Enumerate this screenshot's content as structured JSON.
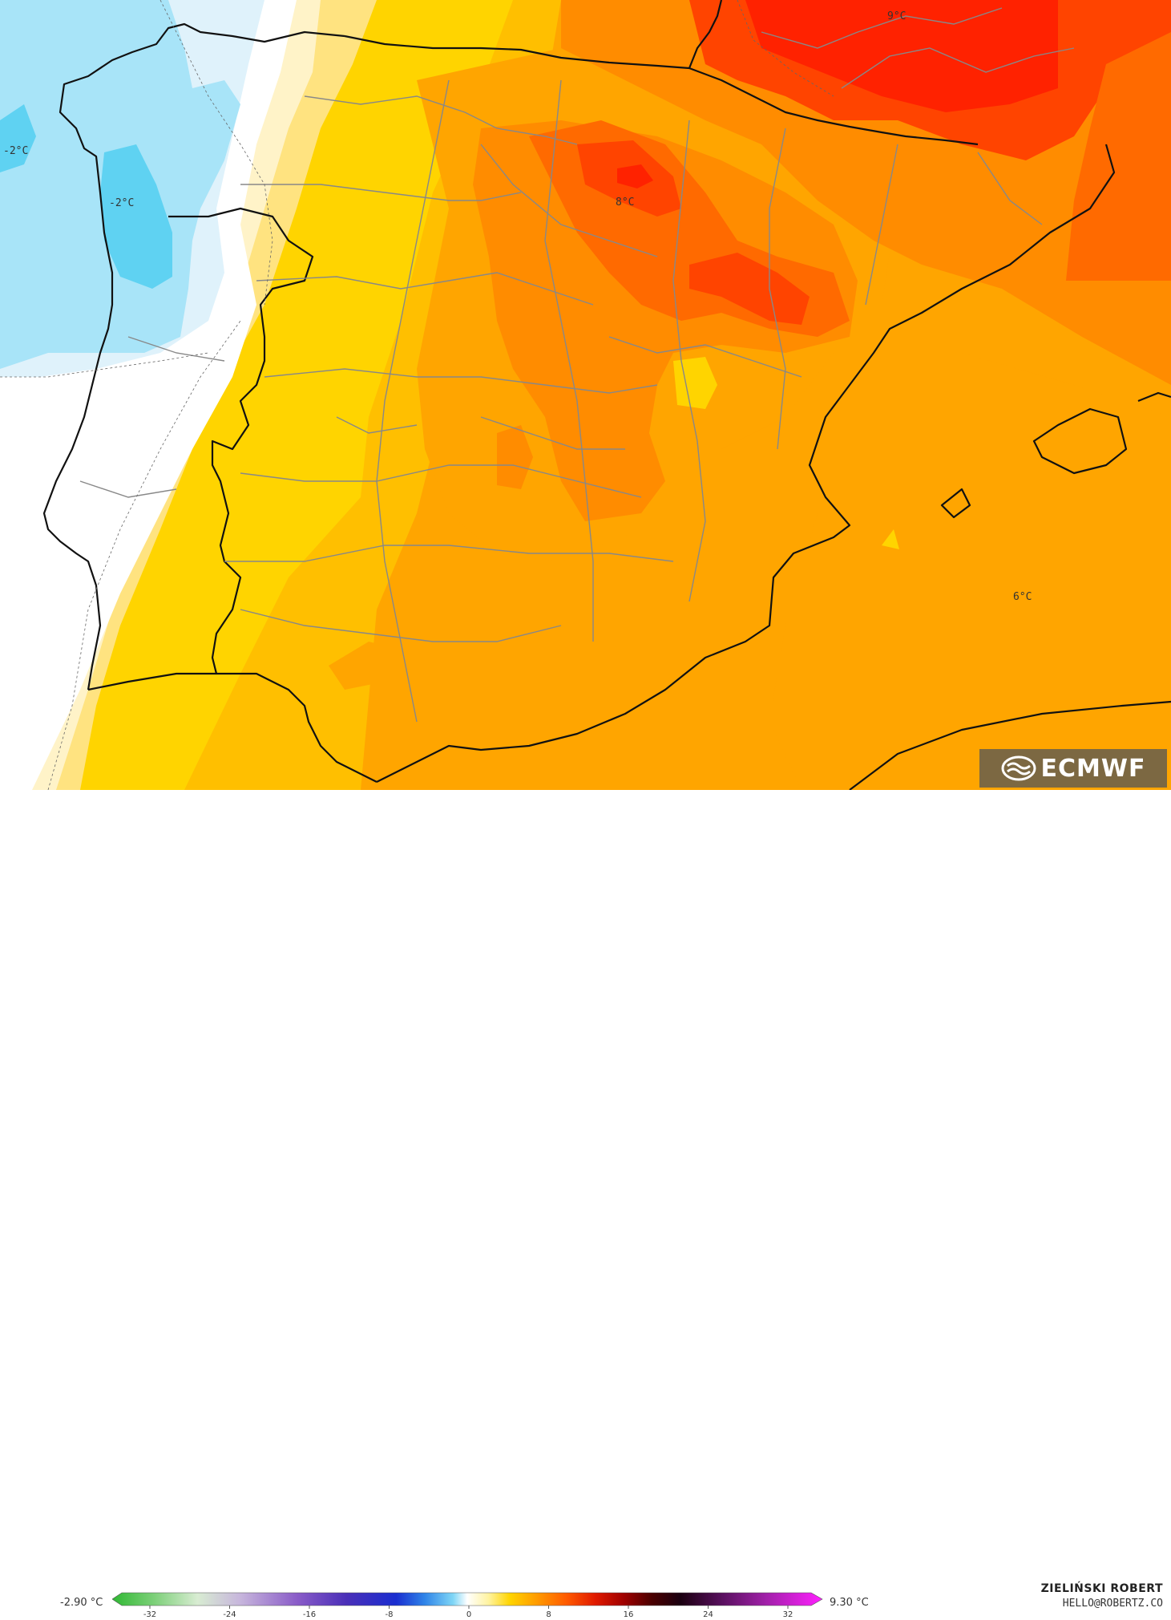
{
  "map": {
    "labels": {
      "west_cold_a": "-2°C",
      "west_cold_b": "-2°C",
      "north_warm": "9°C",
      "central_warm": "8°C",
      "east_sea": "6°C"
    }
  },
  "legend": {
    "min_text": "-2.90 °C",
    "max_text": "9.30 °C",
    "ticks": [
      "-32",
      "-24",
      "-16",
      "-8",
      "0",
      "8",
      "16",
      "24",
      "32"
    ]
  },
  "credits": {
    "author": "ZIELIŃSKI ROBERT",
    "contact": "HELLO@ROBERTZ.CO"
  },
  "logo": {
    "text": "ECMWF",
    "icon": "ecmwf-logo-icon"
  },
  "colors": {
    "cold_deep": "#5fd2f2",
    "cold": "#a8e4f8",
    "cold_light": "#dff2fb",
    "neutral": "#ffffff",
    "cream": "#fff3c8",
    "yellow_light": "#ffe380",
    "yellow": "#ffd400",
    "amber": "#ffbf00",
    "orange_light": "#ffa500",
    "orange": "#ff8c00",
    "orange_dark": "#ff6a00",
    "red": "#ff4400",
    "red_hot": "#ff2200"
  }
}
